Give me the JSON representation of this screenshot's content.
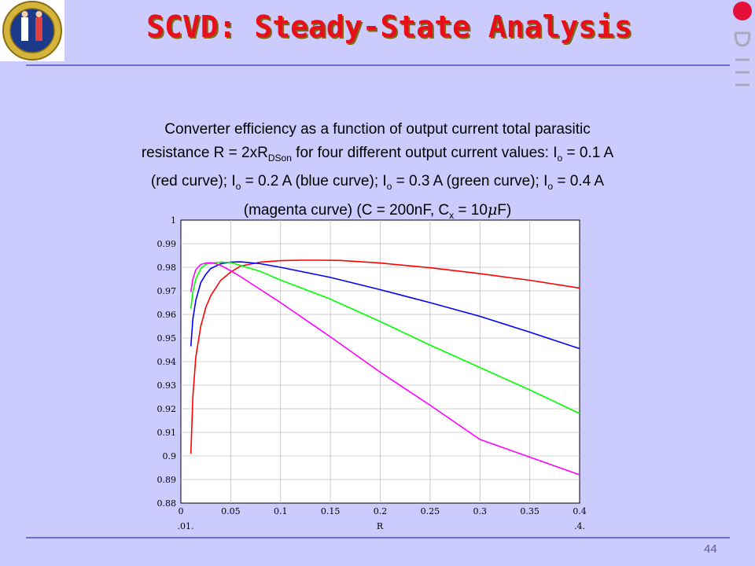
{
  "slide": {
    "title": "SCVD: Steady-State Analysis",
    "page_number": "44",
    "caption": {
      "line1": "Converter efficiency as a function of output current total parasitic",
      "line2_pre": "resistance R = 2xR",
      "line2_sub": "DSon",
      "line2_mid": " for four different output current values: I",
      "line2_sub2": "o",
      "line2_post": " = 0.1 A",
      "line3_a": "(red curve); I",
      "line3_sub1": "o",
      "line3_b": " = 0.2 A (blue curve); I",
      "line3_sub2": "o",
      "line3_c": " = 0.3 A (green curve); I",
      "line3_sub3": "o",
      "line3_d": " = 0.4 A",
      "line4_a": "(magenta curve) (C = 200nF, C",
      "line4_sub": "x",
      "line4_b": " = 10",
      "line4_mu": "μ",
      "line4_c": "F)"
    }
  },
  "chart_data": {
    "type": "line",
    "xlabel": "R",
    "ylabel": "",
    "xlim": [
      0,
      0.4
    ],
    "ylim": [
      0.88,
      1.0
    ],
    "x_ticks": [
      "0",
      "0.05",
      "0.1",
      "0.15",
      "0.2",
      "0.25",
      "0.3",
      "0.35",
      "0.4"
    ],
    "y_ticks": [
      "0.88",
      "0.89",
      "0.9",
      "0.91",
      "0.92",
      "0.93",
      "0.94",
      "0.95",
      "0.96",
      "0.97",
      "0.98",
      "0.99",
      "1"
    ],
    "x_range_labels": [
      ".01.",
      ".4."
    ],
    "grid": true,
    "series": [
      {
        "color": "#ff0000",
        "x": [
          0.01,
          0.012,
          0.015,
          0.02,
          0.025,
          0.03,
          0.04,
          0.05,
          0.06,
          0.08,
          0.1,
          0.12,
          0.14,
          0.16,
          0.2,
          0.25,
          0.3,
          0.35,
          0.4
        ],
        "y": [
          0.901,
          0.925,
          0.942,
          0.955,
          0.963,
          0.968,
          0.9745,
          0.978,
          0.9805,
          0.9822,
          0.9828,
          0.983,
          0.983,
          0.9829,
          0.9818,
          0.9798,
          0.9773,
          0.9745,
          0.9712
        ]
      },
      {
        "color": "#0000ff",
        "x": [
          0.01,
          0.012,
          0.015,
          0.02,
          0.025,
          0.03,
          0.04,
          0.05,
          0.06,
          0.08,
          0.1,
          0.15,
          0.2,
          0.25,
          0.3,
          0.35,
          0.4
        ],
        "y": [
          0.9465,
          0.958,
          0.966,
          0.9735,
          0.977,
          0.9795,
          0.9815,
          0.9822,
          0.9823,
          0.9815,
          0.98,
          0.9757,
          0.9705,
          0.965,
          0.9592,
          0.9525,
          0.9455
        ]
      },
      {
        "color": "#00ff00",
        "x": [
          0.01,
          0.012,
          0.015,
          0.02,
          0.025,
          0.03,
          0.04,
          0.05,
          0.06,
          0.08,
          0.1,
          0.15,
          0.2,
          0.25,
          0.3,
          0.35,
          0.4
        ],
        "y": [
          0.9625,
          0.9695,
          0.975,
          0.9795,
          0.9812,
          0.9818,
          0.9822,
          0.982,
          0.9808,
          0.9782,
          0.9746,
          0.9665,
          0.957,
          0.947,
          0.9375,
          0.928,
          0.918
        ]
      },
      {
        "color": "#ff00ff",
        "x": [
          0.01,
          0.012,
          0.015,
          0.02,
          0.025,
          0.03,
          0.035,
          0.04,
          0.05,
          0.06,
          0.08,
          0.1,
          0.15,
          0.2,
          0.25,
          0.3,
          0.35,
          0.4
        ],
        "y": [
          0.9695,
          0.975,
          0.979,
          0.9812,
          0.9818,
          0.9819,
          0.9815,
          0.9808,
          0.9785,
          0.976,
          0.9705,
          0.965,
          0.9505,
          0.9355,
          0.9215,
          0.907,
          0.8995,
          0.892
        ]
      }
    ]
  }
}
